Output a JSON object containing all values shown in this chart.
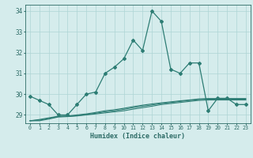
{
  "xlabel": "Humidex (Indice chaleur)",
  "x": [
    0,
    1,
    2,
    3,
    4,
    5,
    6,
    7,
    8,
    9,
    10,
    11,
    12,
    13,
    14,
    15,
    16,
    17,
    18,
    19,
    20,
    21,
    22,
    23
  ],
  "main_line": [
    29.9,
    29.7,
    29.5,
    29.0,
    29.0,
    29.5,
    30.0,
    30.1,
    31.0,
    31.3,
    31.7,
    32.6,
    32.1,
    34.0,
    33.5,
    31.2,
    31.0,
    31.5,
    31.5,
    29.2,
    29.8,
    29.8,
    29.5,
    29.5
  ],
  "flat_line1": [
    28.72,
    28.72,
    28.8,
    28.9,
    28.92,
    28.95,
    29.0,
    29.05,
    29.1,
    29.15,
    29.2,
    29.28,
    29.35,
    29.42,
    29.5,
    29.55,
    29.6,
    29.65,
    29.7,
    29.72,
    29.72,
    29.72,
    29.72,
    29.72
  ],
  "flat_line2": [
    28.72,
    28.75,
    28.83,
    28.92,
    28.93,
    28.97,
    29.02,
    29.08,
    29.15,
    29.2,
    29.27,
    29.35,
    29.42,
    29.48,
    29.55,
    29.6,
    29.65,
    29.7,
    29.74,
    29.76,
    29.76,
    29.76,
    29.76,
    29.76
  ],
  "flat_line3": [
    28.72,
    28.78,
    28.86,
    28.94,
    28.95,
    29.0,
    29.05,
    29.12,
    29.2,
    29.25,
    29.32,
    29.4,
    29.47,
    29.53,
    29.58,
    29.63,
    29.68,
    29.72,
    29.77,
    29.79,
    29.79,
    29.79,
    29.79,
    29.79
  ],
  "ylim": [
    28.6,
    34.3
  ],
  "yticks": [
    29,
    30,
    31,
    32,
    33,
    34
  ],
  "line_color": "#2d7d74",
  "bg_color": "#d5ecec",
  "grid_color": "#aed4d4",
  "tick_color": "#2d6b66",
  "label_color": "#2d6b66"
}
